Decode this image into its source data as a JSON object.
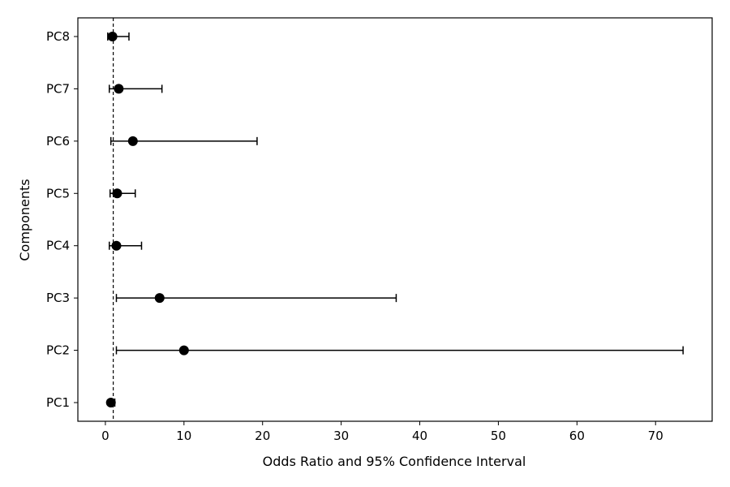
{
  "chart_data": {
    "type": "forest",
    "xlabel": "Odds Ratio and 95% Confidence Interval",
    "ylabel": "Components",
    "xlim": [
      -3.5,
      77.2
    ],
    "xticks": [
      0,
      10,
      20,
      30,
      40,
      50,
      60,
      70
    ],
    "reference_line": 1,
    "grid": false,
    "marker_color": "#000000",
    "points": [
      {
        "label": "PC1",
        "or": 0.7,
        "lower": 0.5,
        "upper": 1.2
      },
      {
        "label": "PC2",
        "or": 10.0,
        "lower": 1.4,
        "upper": 73.5
      },
      {
        "label": "PC3",
        "or": 6.9,
        "lower": 1.4,
        "upper": 37.0
      },
      {
        "label": "PC4",
        "or": 1.4,
        "lower": 0.5,
        "upper": 4.6
      },
      {
        "label": "PC5",
        "or": 1.5,
        "lower": 0.6,
        "upper": 3.8
      },
      {
        "label": "PC6",
        "or": 3.5,
        "lower": 0.7,
        "upper": 19.3
      },
      {
        "label": "PC7",
        "or": 1.7,
        "lower": 0.5,
        "upper": 7.2
      },
      {
        "label": "PC8",
        "or": 0.9,
        "lower": 0.3,
        "upper": 3.0
      }
    ]
  }
}
